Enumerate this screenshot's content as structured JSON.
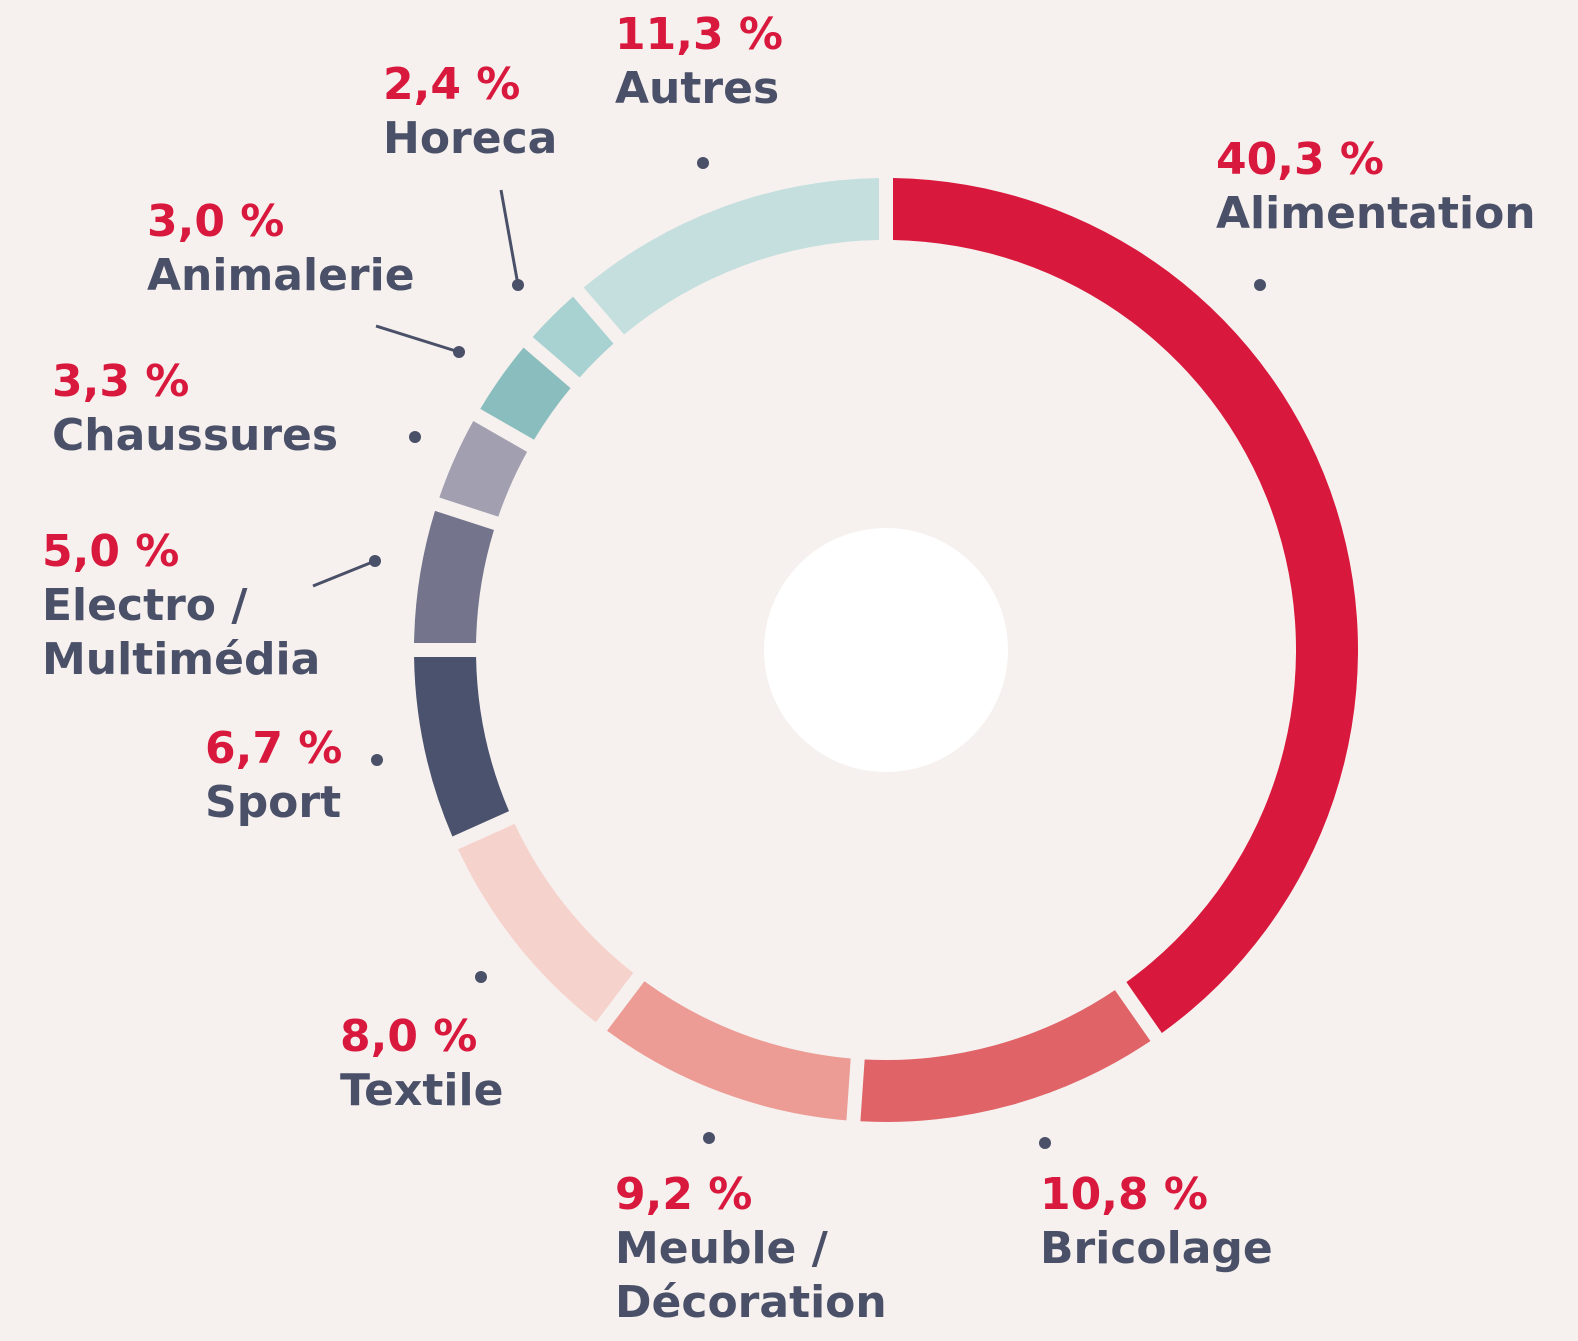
{
  "chart_data": {
    "type": "donut",
    "categories": [
      "Alimentation",
      "Bricolage",
      "Meuble / Décoration",
      "Textile",
      "Sport",
      "Electro / Multimédia",
      "Chaussures",
      "Animalerie",
      "Horeca",
      "Autres"
    ],
    "values": [
      40.3,
      10.8,
      9.2,
      8.0,
      6.7,
      5.0,
      3.3,
      3.0,
      2.4,
      11.3
    ],
    "value_labels": [
      "40,3 %",
      "10,8 %",
      "9,2 %",
      "8,0 %",
      "6,7 %",
      "5,0 %",
      "3,3 %",
      "3,0 %",
      "2,4 %",
      "11,3 %"
    ],
    "colors": [
      "#d8193d",
      "#e06367",
      "#ec9c95",
      "#f6d2cc",
      "#4b526d",
      "#74758c",
      "#a19fb0",
      "#89bdbe",
      "#a8d1d2",
      "#c5dfdf"
    ]
  }
}
